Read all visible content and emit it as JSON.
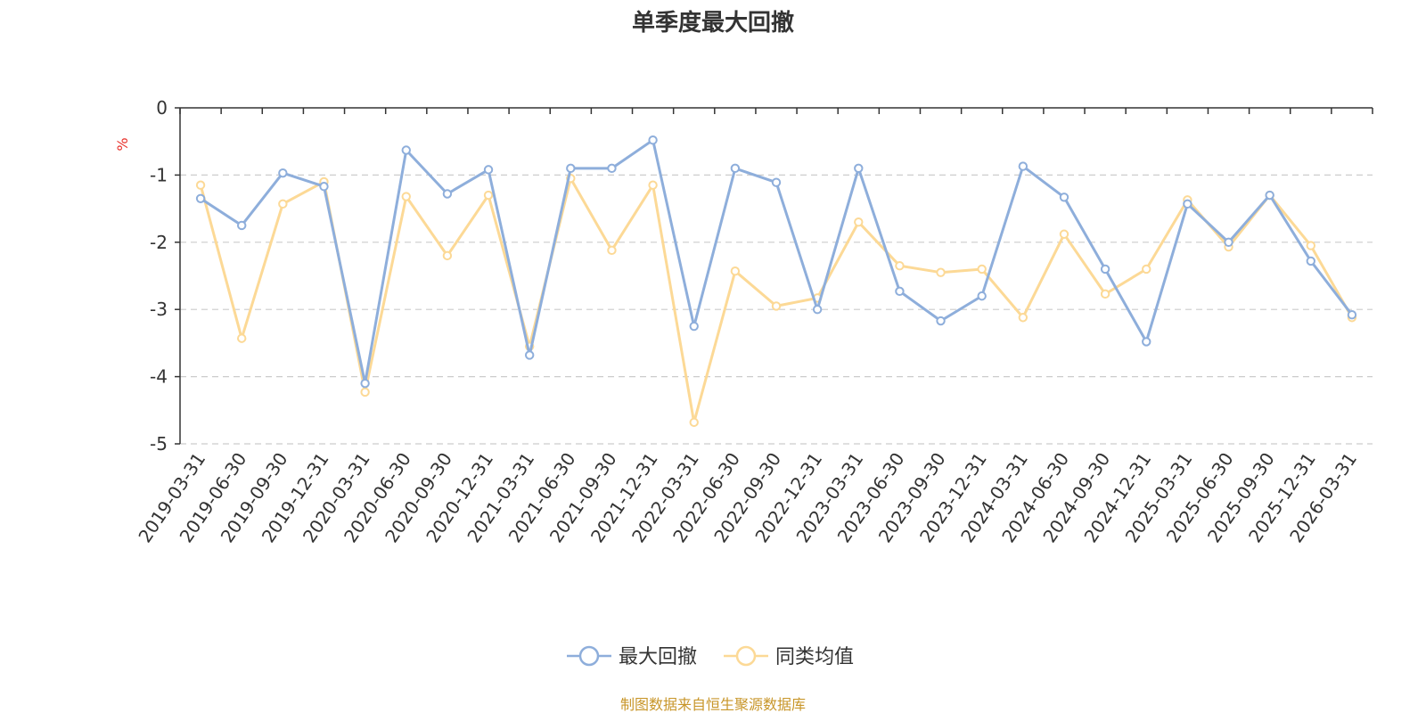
{
  "chart_data": {
    "type": "line",
    "title": "单季度最大回撤",
    "y_unit_label": "%",
    "xlabel": "",
    "ylabel": "",
    "ylim": [
      -5,
      0
    ],
    "y_ticks": [
      "0",
      "-1",
      "-2",
      "-3",
      "-4",
      "-5"
    ],
    "y_tick_values": [
      0,
      -1,
      -2,
      -3,
      -4,
      -5
    ],
    "grid": true,
    "legend_position": "bottom-center",
    "categories": [
      "2019-03-31",
      "2019-06-30",
      "2019-09-30",
      "2019-12-31",
      "2020-03-31",
      "2020-06-30",
      "2020-09-30",
      "2020-12-31",
      "2021-03-31",
      "2021-06-30",
      "2021-09-30",
      "2021-12-31",
      "2022-03-31",
      "2022-06-30",
      "2022-09-30",
      "2022-12-31",
      "2023-03-31",
      "2023-06-30",
      "2023-09-30",
      "2023-12-31",
      "2024-03-31",
      "2024-06-30",
      "2024-09-30",
      "2024-12-31",
      "2025-03-31",
      "2025-06-30",
      "2025-09-30",
      "2025-12-31",
      "2026-03-31"
    ],
    "series": [
      {
        "name": "最大回撤",
        "color": "#8eaedb",
        "values": [
          -1.35,
          -1.75,
          -0.97,
          -1.17,
          -4.1,
          -0.63,
          -1.28,
          -0.92,
          -3.68,
          -0.9,
          -0.9,
          -0.48,
          -3.25,
          -0.9,
          -1.11,
          -3.0,
          -0.9,
          -2.73,
          -3.17,
          -2.8,
          -0.87,
          -1.33,
          -2.4,
          -3.48,
          -1.43,
          -2.0,
          -1.3,
          -2.28,
          -3.08
        ]
      },
      {
        "name": "同类均值",
        "color": "#fcd996",
        "values": [
          -1.15,
          -3.43,
          -1.43,
          -1.1,
          -4.23,
          -1.32,
          -2.2,
          -1.3,
          -3.55,
          -1.05,
          -2.12,
          -1.15,
          -4.68,
          -2.43,
          -2.95,
          -2.83,
          -1.7,
          -2.35,
          -2.45,
          -2.4,
          -3.12,
          -1.88,
          -2.77,
          -2.4,
          -1.37,
          -2.07,
          -1.3,
          -2.05,
          -3.12
        ]
      }
    ]
  },
  "footer": {
    "source": "制图数据来自恒生聚源数据库"
  },
  "colors": {
    "axis": "#333333",
    "grid": "#cccccc",
    "unit": "#e8302a",
    "source": "#c8962a"
  }
}
